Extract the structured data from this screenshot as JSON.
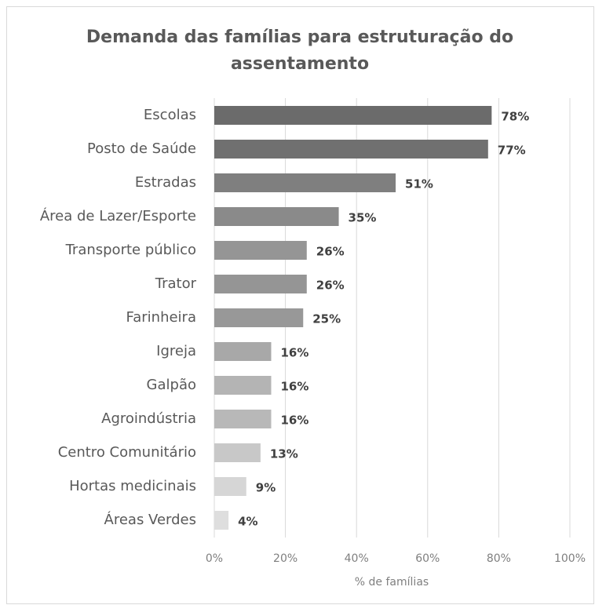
{
  "chart_data": {
    "type": "bar",
    "orientation": "horizontal",
    "title": [
      "Demanda das famílias para estruturação do",
      "assentamento"
    ],
    "categories": [
      "Escolas",
      "Posto de Saúde",
      "Estradas",
      "Área de Lazer/Esporte",
      "Transporte público",
      "Trator",
      "Farinheira",
      "Igreja",
      "Galpão",
      "Agroindústria",
      "Centro Comunitário",
      "Hortas medicinais",
      "Áreas Verdes"
    ],
    "values": [
      78,
      77,
      51,
      35,
      26,
      26,
      25,
      16,
      16,
      16,
      13,
      9,
      4
    ],
    "value_labels": [
      "78%",
      "77%",
      "51%",
      "35%",
      "26%",
      "26%",
      "25%",
      "16%",
      "16%",
      "16%",
      "13%",
      "9%",
      "4%"
    ],
    "colors": [
      "#6b6b6b",
      "#707070",
      "#7f7f7f",
      "#8a8a8a",
      "#959595",
      "#959595",
      "#989898",
      "#a8a8a8",
      "#b4b4b4",
      "#b8b8b8",
      "#c8c8c8",
      "#d6d6d6",
      "#dedede"
    ],
    "xlabel": "% de famílias",
    "xlim": [
      0,
      100
    ],
    "xticks": [
      {
        "value": 0,
        "label": "0%"
      },
      {
        "value": 20,
        "label": "20%"
      },
      {
        "value": 40,
        "label": "40%"
      },
      {
        "value": 60,
        "label": "60%"
      },
      {
        "value": 80,
        "label": "80%"
      },
      {
        "value": 100,
        "label": "100%"
      }
    ],
    "grid": true
  }
}
